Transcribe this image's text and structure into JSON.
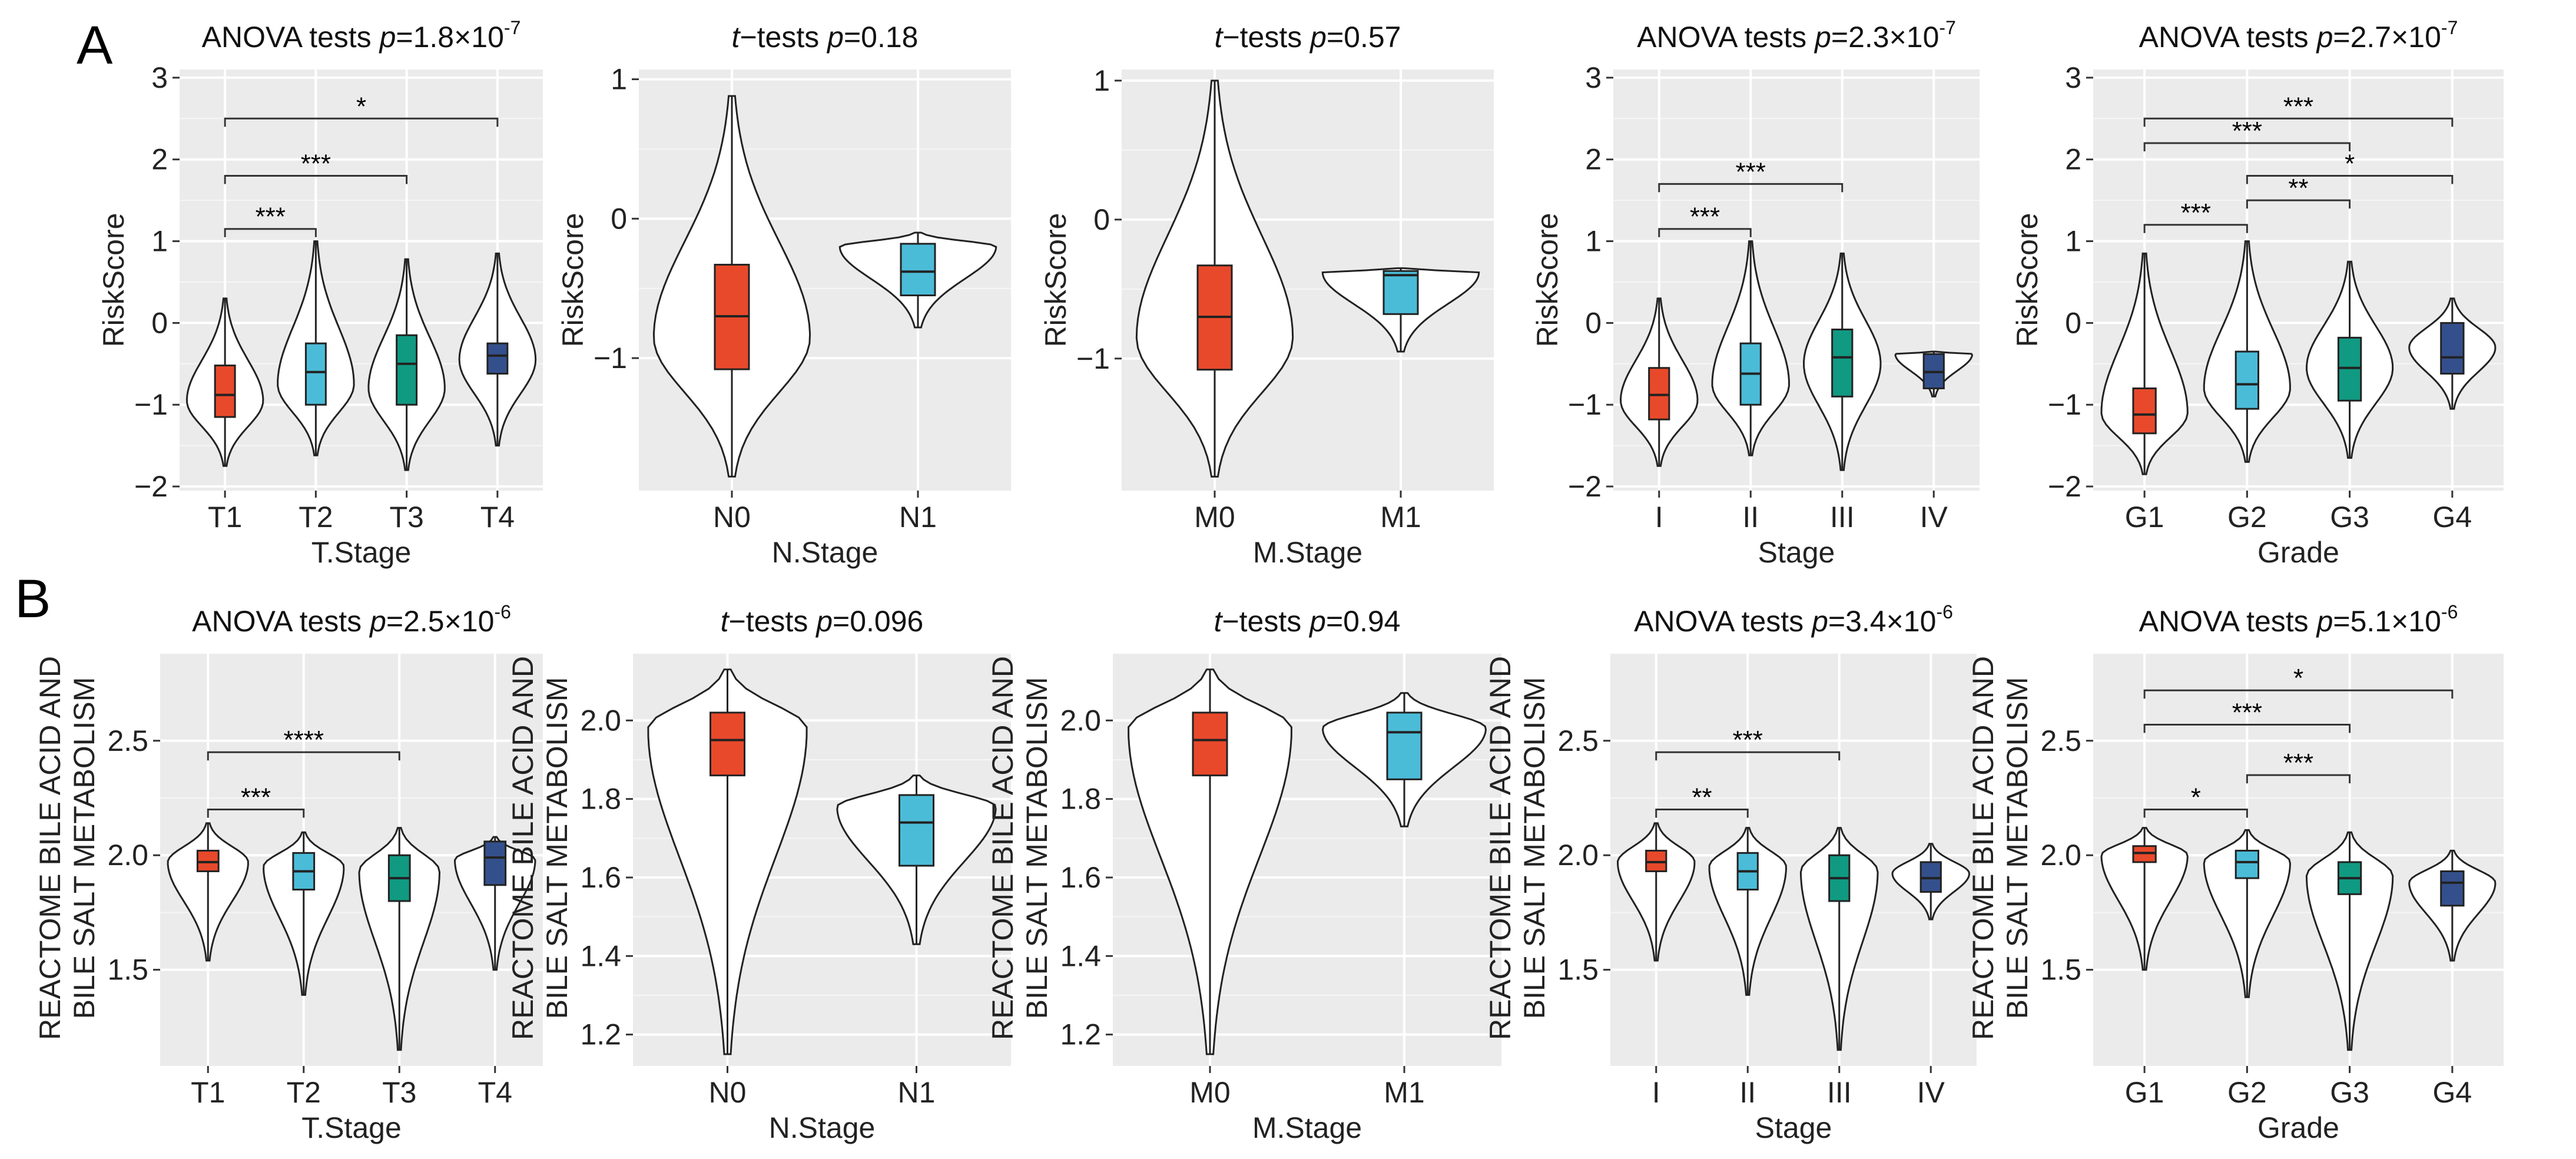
{
  "figure": {
    "panel_A_label": "A",
    "panel_B_label": "B"
  },
  "colors": {
    "red": "#e8492b",
    "cyan": "#4bbcd8",
    "teal": "#109a82",
    "navy": "#34508c",
    "panel_bg": "#ebebeb",
    "grid": "#ffffff"
  },
  "chart_data": [
    {
      "id": "A1",
      "type": "violin",
      "title_prefix": "ANOVA tests ",
      "title_p": "p",
      "title_value": "=1.8×10",
      "title_exp": "-7",
      "xlabel": "T.Stage",
      "ylabel": "RiskScore",
      "ylim": [
        -2.05,
        3.1
      ],
      "yticks": [
        -2,
        -1,
        0,
        1,
        2,
        3
      ],
      "ytick_labels": [
        "−2",
        "−1",
        "0",
        "1",
        "2",
        "3"
      ],
      "categories": [
        "T1",
        "T2",
        "T3",
        "T4"
      ],
      "boxes": [
        {
          "min": -1.75,
          "q1": -1.15,
          "median": -0.88,
          "q3": -0.52,
          "max": 0.3
        },
        {
          "min": -1.62,
          "q1": -1.0,
          "median": -0.6,
          "q3": -0.25,
          "max": 1.0
        },
        {
          "min": -1.8,
          "q1": -1.0,
          "median": -0.5,
          "q3": -0.15,
          "max": 0.78
        },
        {
          "min": -1.5,
          "q1": -0.62,
          "median": -0.4,
          "q3": -0.25,
          "max": 0.85
        }
      ],
      "density_peak": [
        -0.95,
        -0.75,
        -0.8,
        -0.45
      ],
      "colors": [
        "red",
        "cyan",
        "teal",
        "navy"
      ],
      "brackets": [
        {
          "from": 0,
          "to": 1,
          "y": 1.15,
          "label": "***"
        },
        {
          "from": 0,
          "to": 2,
          "y": 1.8,
          "label": "***"
        },
        {
          "from": 0,
          "to": 3,
          "y": 2.5,
          "label": "*"
        }
      ]
    },
    {
      "id": "A2",
      "type": "violin",
      "title_prefix": "",
      "title_p": "t",
      "title_value": "−tests ",
      "title_p2": "p",
      "title_value2": "=0.18",
      "xlabel": "N.Stage",
      "ylabel": "RiskScore",
      "ylim": [
        -1.95,
        1.07
      ],
      "yticks": [
        -1,
        0,
        1
      ],
      "ytick_labels": [
        "−1",
        "0",
        "1"
      ],
      "categories": [
        "N0",
        "N1"
      ],
      "boxes": [
        {
          "min": -1.85,
          "q1": -1.08,
          "median": -0.7,
          "q3": -0.33,
          "max": 0.88
        },
        {
          "min": -0.78,
          "q1": -0.55,
          "median": -0.38,
          "q3": -0.18,
          "max": -0.1
        }
      ],
      "density_peak": [
        -0.85,
        -0.2
      ],
      "colors": [
        "red",
        "cyan"
      ],
      "brackets": []
    },
    {
      "id": "A3",
      "type": "violin",
      "title_prefix": "",
      "title_p": "t",
      "title_value": "−tests ",
      "title_p2": "p",
      "title_value2": "=0.57",
      "xlabel": "M.Stage",
      "ylabel": "RiskScore",
      "ylim": [
        -1.95,
        1.08
      ],
      "yticks": [
        -1,
        0,
        1
      ],
      "ytick_labels": [
        "−1",
        "0",
        "1"
      ],
      "categories": [
        "M0",
        "M1"
      ],
      "boxes": [
        {
          "min": -1.85,
          "q1": -1.08,
          "median": -0.7,
          "q3": -0.33,
          "max": 1.0
        },
        {
          "min": -0.95,
          "q1": -0.68,
          "median": -0.4,
          "q3": -0.37,
          "max": -0.35
        }
      ],
      "density_peak": [
        -0.85,
        -0.38
      ],
      "colors": [
        "red",
        "cyan"
      ],
      "brackets": []
    },
    {
      "id": "A4",
      "type": "violin",
      "title_prefix": "ANOVA tests ",
      "title_p": "p",
      "title_value": "=2.3×10",
      "title_exp": "-7",
      "xlabel": "Stage",
      "ylabel": "RiskScore",
      "ylim": [
        -2.05,
        3.1
      ],
      "yticks": [
        -2,
        -1,
        0,
        1,
        2,
        3
      ],
      "ytick_labels": [
        "−2",
        "−1",
        "0",
        "1",
        "2",
        "3"
      ],
      "categories": [
        "I",
        "II",
        "III",
        "IV"
      ],
      "boxes": [
        {
          "min": -1.75,
          "q1": -1.18,
          "median": -0.88,
          "q3": -0.55,
          "max": 0.3
        },
        {
          "min": -1.62,
          "q1": -1.0,
          "median": -0.62,
          "q3": -0.25,
          "max": 1.0
        },
        {
          "min": -1.8,
          "q1": -0.9,
          "median": -0.42,
          "q3": -0.08,
          "max": 0.85
        },
        {
          "min": -0.9,
          "q1": -0.8,
          "median": -0.6,
          "q3": -0.38,
          "max": -0.35
        }
      ],
      "density_peak": [
        -0.95,
        -0.75,
        -0.5,
        -0.38
      ],
      "colors": [
        "red",
        "cyan",
        "teal",
        "navy"
      ],
      "brackets": [
        {
          "from": 0,
          "to": 1,
          "y": 1.15,
          "label": "***"
        },
        {
          "from": 0,
          "to": 2,
          "y": 1.7,
          "label": "***"
        }
      ]
    },
    {
      "id": "A5",
      "type": "violin",
      "title_prefix": "ANOVA tests ",
      "title_p": "p",
      "title_value": "=2.7×10",
      "title_exp": "-7",
      "xlabel": "Grade",
      "ylabel": "RiskScore",
      "ylim": [
        -2.05,
        3.1
      ],
      "yticks": [
        -2,
        -1,
        0,
        1,
        2,
        3
      ],
      "ytick_labels": [
        "−2",
        "−1",
        "0",
        "1",
        "2",
        "3"
      ],
      "categories": [
        "G1",
        "G2",
        "G3",
        "G4"
      ],
      "boxes": [
        {
          "min": -1.85,
          "q1": -1.35,
          "median": -1.12,
          "q3": -0.8,
          "max": 0.85
        },
        {
          "min": -1.7,
          "q1": -1.05,
          "median": -0.75,
          "q3": -0.35,
          "max": 1.0
        },
        {
          "min": -1.65,
          "q1": -0.95,
          "median": -0.55,
          "q3": -0.18,
          "max": 0.75
        },
        {
          "min": -1.05,
          "q1": -0.62,
          "median": -0.42,
          "q3": 0.0,
          "max": 0.3
        }
      ],
      "density_peak": [
        -1.1,
        -0.8,
        -0.55,
        -0.3
      ],
      "colors": [
        "red",
        "cyan",
        "teal",
        "navy"
      ],
      "brackets": [
        {
          "from": 0,
          "to": 1,
          "y": 1.2,
          "label": "***"
        },
        {
          "from": 1,
          "to": 2,
          "y": 1.5,
          "label": "**"
        },
        {
          "from": 1,
          "to": 3,
          "y": 1.8,
          "label": "*"
        },
        {
          "from": 0,
          "to": 2,
          "y": 2.2,
          "label": "***"
        },
        {
          "from": 0,
          "to": 3,
          "y": 2.5,
          "label": "***"
        }
      ]
    },
    {
      "id": "B1",
      "type": "violin",
      "title_prefix": "ANOVA tests ",
      "title_p": "p",
      "title_value": "=2.5×10",
      "title_exp": "-6",
      "xlabel": "T.Stage",
      "ylabel_line1": "REACTOME BILE ACID AND",
      "ylabel_line2": "BILE SALT METABOLISM",
      "ylim": [
        1.08,
        2.88
      ],
      "yticks": [
        1.5,
        2.0,
        2.5
      ],
      "ytick_labels": [
        "1.5",
        "2.0",
        "2.5"
      ],
      "categories": [
        "T1",
        "T2",
        "T3",
        "T4"
      ],
      "boxes": [
        {
          "min": 1.54,
          "q1": 1.93,
          "median": 1.97,
          "q3": 2.02,
          "max": 2.14
        },
        {
          "min": 1.39,
          "q1": 1.85,
          "median": 1.93,
          "q3": 2.01,
          "max": 2.1
        },
        {
          "min": 1.15,
          "q1": 1.8,
          "median": 1.9,
          "q3": 2.0,
          "max": 2.12
        },
        {
          "min": 1.5,
          "q1": 1.87,
          "median": 1.99,
          "q3": 2.06,
          "max": 2.08
        }
      ],
      "density_peak": [
        1.97,
        1.95,
        1.93,
        1.98
      ],
      "colors": [
        "red",
        "cyan",
        "teal",
        "navy"
      ],
      "brackets": [
        {
          "from": 0,
          "to": 1,
          "y": 2.2,
          "label": "***"
        },
        {
          "from": 0,
          "to": 2,
          "y": 2.45,
          "label": "****"
        }
      ]
    },
    {
      "id": "B2",
      "type": "violin",
      "title_prefix": "",
      "title_p": "t",
      "title_value": "−tests ",
      "title_p2": "p",
      "title_value2": "=0.096",
      "xlabel": "N.Stage",
      "ylabel_line1": "REACTOME BILE ACID AND",
      "ylabel_line2": "BILE SALT METABOLISM",
      "ylim": [
        1.12,
        2.17
      ],
      "yticks": [
        1.2,
        1.4,
        1.6,
        1.8,
        2.0
      ],
      "ytick_labels": [
        "1.2",
        "1.4",
        "1.6",
        "1.8",
        "2.0"
      ],
      "categories": [
        "N0",
        "N1"
      ],
      "boxes": [
        {
          "min": 1.15,
          "q1": 1.86,
          "median": 1.95,
          "q3": 2.02,
          "max": 2.13
        },
        {
          "min": 1.43,
          "q1": 1.63,
          "median": 1.74,
          "q3": 1.81,
          "max": 1.86
        }
      ],
      "density_peak": [
        1.98,
        1.78
      ],
      "colors": [
        "red",
        "cyan"
      ],
      "brackets": []
    },
    {
      "id": "B3",
      "type": "violin",
      "title_prefix": "",
      "title_p": "t",
      "title_value": "−tests ",
      "title_p2": "p",
      "title_value2": "=0.94",
      "xlabel": "M.Stage",
      "ylabel_line1": "REACTOME BILE ACID AND",
      "ylabel_line2": "BILE SALT METABOLISM",
      "ylim": [
        1.12,
        2.17
      ],
      "yticks": [
        1.2,
        1.4,
        1.6,
        1.8,
        2.0
      ],
      "ytick_labels": [
        "1.2",
        "1.4",
        "1.6",
        "1.8",
        "2.0"
      ],
      "categories": [
        "M0",
        "M1"
      ],
      "boxes": [
        {
          "min": 1.15,
          "q1": 1.86,
          "median": 1.95,
          "q3": 2.02,
          "max": 2.13
        },
        {
          "min": 1.73,
          "q1": 1.85,
          "median": 1.97,
          "q3": 2.02,
          "max": 2.07
        }
      ],
      "density_peak": [
        1.98,
        1.98
      ],
      "colors": [
        "red",
        "cyan"
      ],
      "brackets": []
    },
    {
      "id": "B4",
      "type": "violin",
      "title_prefix": "ANOVA tests ",
      "title_p": "p",
      "title_value": "=3.4×10",
      "title_exp": "-6",
      "xlabel": "Stage",
      "ylabel_line1": "REACTOME BILE ACID AND",
      "ylabel_line2": "BILE SALT METABOLISM",
      "ylim": [
        1.08,
        2.88
      ],
      "yticks": [
        1.5,
        2.0,
        2.5
      ],
      "ytick_labels": [
        "1.5",
        "2.0",
        "2.5"
      ],
      "categories": [
        "I",
        "II",
        "III",
        "IV"
      ],
      "boxes": [
        {
          "min": 1.54,
          "q1": 1.93,
          "median": 1.97,
          "q3": 2.02,
          "max": 2.14
        },
        {
          "min": 1.39,
          "q1": 1.85,
          "median": 1.93,
          "q3": 2.01,
          "max": 2.12
        },
        {
          "min": 1.15,
          "q1": 1.8,
          "median": 1.9,
          "q3": 2.0,
          "max": 2.12
        },
        {
          "min": 1.72,
          "q1": 1.84,
          "median": 1.9,
          "q3": 1.97,
          "max": 2.05
        }
      ],
      "density_peak": [
        1.97,
        1.95,
        1.93,
        1.92
      ],
      "colors": [
        "red",
        "cyan",
        "teal",
        "navy"
      ],
      "brackets": [
        {
          "from": 0,
          "to": 1,
          "y": 2.2,
          "label": "**"
        },
        {
          "from": 0,
          "to": 2,
          "y": 2.45,
          "label": "***"
        }
      ]
    },
    {
      "id": "B5",
      "type": "violin",
      "title_prefix": "ANOVA tests ",
      "title_p": "p",
      "title_value": "=5.1×10",
      "title_exp": "-6",
      "xlabel": "Grade",
      "ylabel_line1": "REACTOME BILE ACID AND",
      "ylabel_line2": "BILE SALT METABOLISM",
      "ylim": [
        1.08,
        2.88
      ],
      "yticks": [
        1.5,
        2.0,
        2.5
      ],
      "ytick_labels": [
        "1.5",
        "2.0",
        "2.5"
      ],
      "categories": [
        "G1",
        "G2",
        "G3",
        "G4"
      ],
      "boxes": [
        {
          "min": 1.5,
          "q1": 1.97,
          "median": 2.01,
          "q3": 2.04,
          "max": 2.12
        },
        {
          "min": 1.38,
          "q1": 1.9,
          "median": 1.97,
          "q3": 2.02,
          "max": 2.11
        },
        {
          "min": 1.15,
          "q1": 1.83,
          "median": 1.9,
          "q3": 1.97,
          "max": 2.1
        },
        {
          "min": 1.54,
          "q1": 1.78,
          "median": 1.88,
          "q3": 1.93,
          "max": 2.02
        }
      ],
      "density_peak": [
        2.0,
        1.97,
        1.91,
        1.88
      ],
      "colors": [
        "red",
        "cyan",
        "teal",
        "navy"
      ],
      "brackets": [
        {
          "from": 0,
          "to": 1,
          "y": 2.2,
          "label": "*"
        },
        {
          "from": 1,
          "to": 2,
          "y": 2.35,
          "label": "***"
        },
        {
          "from": 0,
          "to": 2,
          "y": 2.57,
          "label": "***"
        },
        {
          "from": 0,
          "to": 3,
          "y": 2.72,
          "label": "*"
        }
      ]
    }
  ]
}
